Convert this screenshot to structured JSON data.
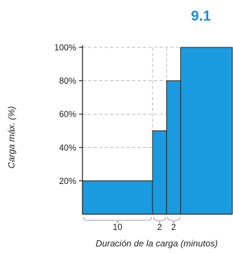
{
  "figure_label": "9.1",
  "chart_data": {
    "type": "bar",
    "ylabel": "Carga máx. (%)",
    "xlabel": "Duración de la carga (minutos)",
    "ylim": [
      0,
      100
    ],
    "yticks": [
      20,
      40,
      60,
      80,
      100
    ],
    "ytick_labels": [
      "20%",
      "40%",
      "60%",
      "80%",
      "100%"
    ],
    "grid": "dashed horizontal and vertical guide lines",
    "bar_color": "#1a9be0",
    "segments": [
      {
        "duration_min": 10,
        "value": 20,
        "duration_label": "10"
      },
      {
        "duration_min": 2,
        "value": 50,
        "duration_label": "2"
      },
      {
        "duration_min": 2,
        "value": 80,
        "duration_label": "2"
      },
      {
        "duration_min": null,
        "value": 100,
        "duration_label": ""
      }
    ]
  }
}
